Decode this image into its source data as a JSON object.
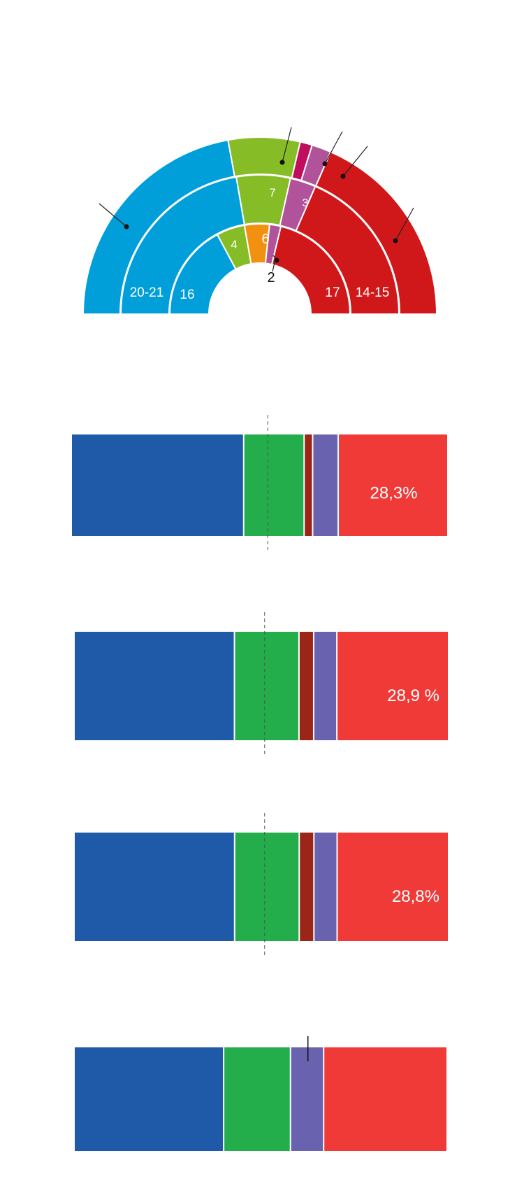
{
  "colors": {
    "blue": "#009fda",
    "green": "#86bc25",
    "orange": "#f29111",
    "magenta": "#c10e5c",
    "purple": "#b0539a",
    "red": "#d0181a",
    "bar_blue": "#1f5aa8",
    "bar_green": "#24ad4b",
    "bar_darkred": "#9b2517",
    "bar_purple": "#6962ae",
    "bar_red": "#f03a37"
  },
  "chart_data": [
    {
      "type": "pie",
      "subtype": "half-donut-parliament",
      "rings": [
        {
          "ring": "outer",
          "segments": [
            {
              "color": "blue",
              "label": ""
            },
            {
              "color": "green",
              "label": ""
            },
            {
              "color": "magenta",
              "label": ""
            },
            {
              "color": "purple",
              "label": ""
            },
            {
              "color": "red",
              "label": ""
            }
          ]
        },
        {
          "ring": "middle",
          "segments": [
            {
              "color": "blue",
              "label": "20-21"
            },
            {
              "color": "green",
              "label": "7"
            },
            {
              "color": "purple",
              "label": "3"
            },
            {
              "color": "red",
              "label": "14-15"
            }
          ]
        },
        {
          "ring": "inner",
          "segments": [
            {
              "color": "blue",
              "label": "16"
            },
            {
              "color": "green",
              "label": "4"
            },
            {
              "color": "orange",
              "label": "6"
            },
            {
              "color": "purple",
              "label": "2"
            },
            {
              "color": "red",
              "label": "17"
            }
          ]
        }
      ]
    },
    {
      "type": "bar",
      "subtype": "stacked-horizontal-100",
      "series": [
        {
          "color": "bar_blue",
          "value": 44.5
        },
        {
          "color": "bar_green",
          "value": 15.6
        },
        {
          "color": "bar_darkred",
          "value": 2.2
        },
        {
          "color": "bar_purple",
          "value": 6.6
        },
        {
          "color": "bar_red",
          "value": 28.3,
          "label": "28,3%"
        }
      ],
      "reference_line": 52
    },
    {
      "type": "bar",
      "subtype": "stacked-horizontal-100",
      "series": [
        {
          "color": "bar_blue",
          "value": 41.5
        },
        {
          "color": "bar_green",
          "value": 16.7
        },
        {
          "color": "bar_darkred",
          "value": 3.8
        },
        {
          "color": "bar_purple",
          "value": 6.0
        },
        {
          "color": "bar_red",
          "value": 28.9,
          "label": "28,9 %"
        }
      ],
      "reference_line": 50.7
    },
    {
      "type": "bar",
      "subtype": "stacked-horizontal-100",
      "series": [
        {
          "color": "bar_blue",
          "value": 41.5
        },
        {
          "color": "bar_green",
          "value": 16.7
        },
        {
          "color": "bar_darkred",
          "value": 3.8
        },
        {
          "color": "bar_purple",
          "value": 6.0
        },
        {
          "color": "bar_red",
          "value": 28.8,
          "label": "28,8%"
        }
      ],
      "reference_line": 50.7
    },
    {
      "type": "bar",
      "subtype": "stacked-horizontal-100",
      "series": [
        {
          "color": "bar_blue",
          "value": 40.1
        },
        {
          "color": "bar_green",
          "value": 17.9
        },
        {
          "color": "bar_purple",
          "value": 8.9
        },
        {
          "color": "bar_red",
          "value": 33.1
        }
      ],
      "marker": 62.5
    }
  ]
}
